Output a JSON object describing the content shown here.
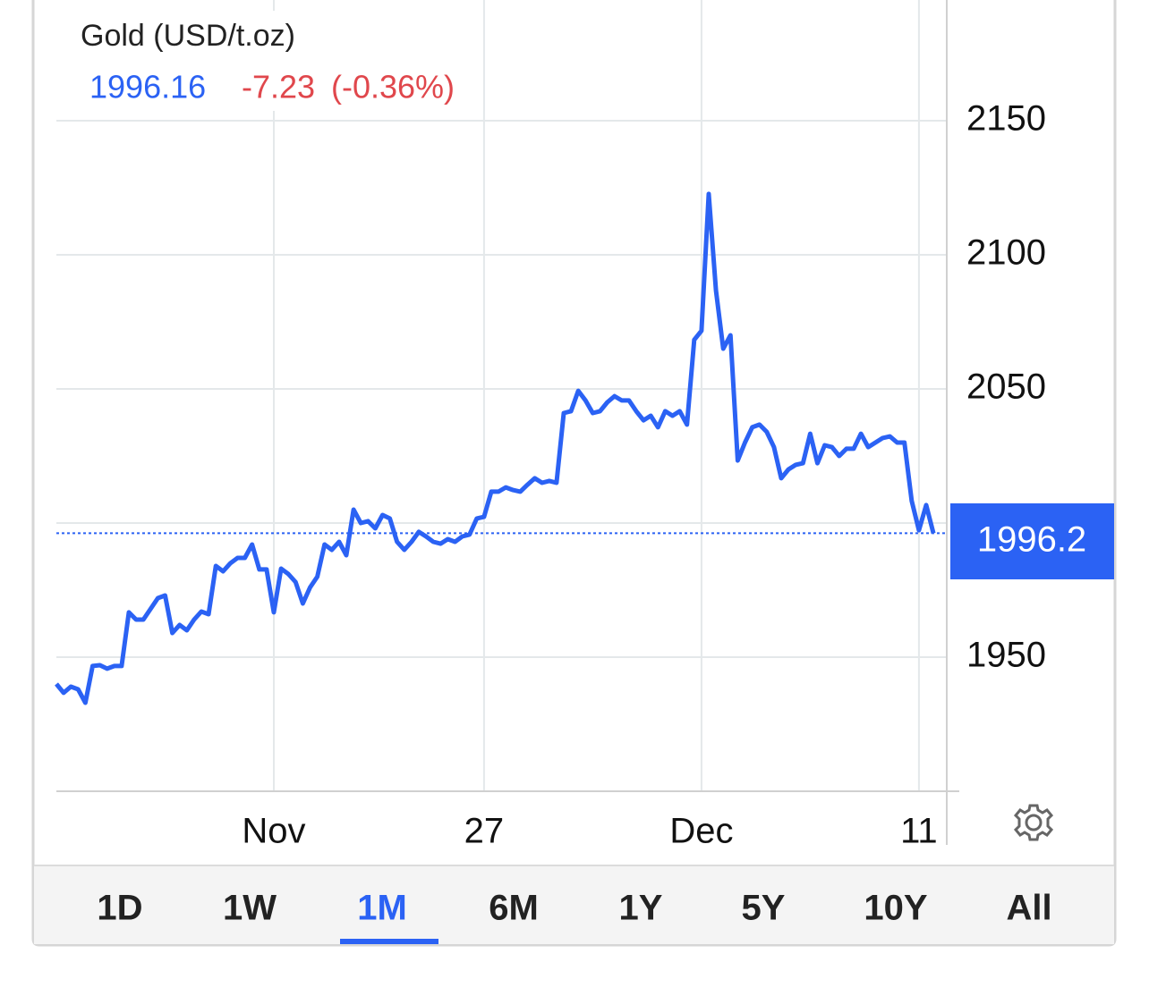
{
  "chart_data": {
    "type": "line",
    "title": "Gold (USD/t.oz)",
    "price": "1996.16",
    "change": "-7.23",
    "change_pct": "(-0.36%)",
    "categories": [
      null,
      null,
      null,
      null,
      null,
      null,
      null,
      null,
      null,
      null,
      null,
      null,
      null,
      null,
      null,
      null,
      null,
      null,
      null,
      null,
      null,
      null,
      null,
      null,
      null,
      null,
      null,
      null,
      null,
      null,
      "Nov",
      null,
      null,
      null,
      null,
      null,
      null,
      null,
      null,
      null,
      null,
      null,
      null,
      null,
      null,
      null,
      null,
      null,
      null,
      null,
      null,
      null,
      null,
      null,
      null,
      null,
      null,
      null,
      null,
      "27",
      null,
      null,
      null,
      null,
      null,
      null,
      null,
      null,
      null,
      null,
      null,
      null,
      null,
      null,
      null,
      null,
      null,
      null,
      null,
      null,
      null,
      null,
      null,
      null,
      null,
      null,
      null,
      null,
      null,
      "Dec",
      null,
      null,
      null,
      null,
      null,
      null,
      null,
      null,
      null,
      null,
      null,
      null,
      null,
      null,
      null,
      null,
      null,
      null,
      null,
      null,
      null,
      null,
      null,
      null,
      null,
      null,
      null,
      null,
      null,
      "11",
      null,
      null
    ],
    "series": [
      {
        "name": "Gold",
        "color": "#2b62f4",
        "values": [
          1940,
          1936.7,
          1939,
          1938,
          1933,
          1946.7,
          1947,
          1945.7,
          1946.7,
          1946.7,
          1966.7,
          1964,
          1964,
          1968,
          1972,
          1973,
          1959,
          1962,
          1960,
          1964,
          1967,
          1966,
          1984,
          1982,
          1985,
          1987,
          1987,
          1992,
          1982.7,
          1982.7,
          1966.7,
          1983,
          1981,
          1978,
          1970,
          1976,
          1980,
          1992,
          1990,
          1993,
          1988,
          2005,
          2000,
          2000.7,
          1998,
          2003,
          2001.7,
          1993,
          1990,
          1993,
          1996.7,
          1995,
          1993,
          1992.3,
          1994,
          1993,
          1995,
          1995.7,
          2001.7,
          2002.3,
          2011.7,
          2011.7,
          2013.3,
          2012.3,
          2011.7,
          2014.3,
          2016.7,
          2015,
          2015.7,
          2015,
          2041,
          2041.7,
          2049.3,
          2045.7,
          2041,
          2041.7,
          2045,
          2047.3,
          2045.7,
          2045.7,
          2041.7,
          2038.3,
          2040,
          2035.7,
          2041.7,
          2040,
          2041.7,
          2036.7,
          2068.3,
          2071.7,
          2122.7,
          2086.7,
          2065,
          2070,
          2023.3,
          2030,
          2035.7,
          2036.7,
          2034,
          2028.3,
          2016.7,
          2020,
          2021.7,
          2022.3,
          2033.3,
          2022.3,
          2029,
          2028.3,
          2025,
          2027.7,
          2027.7,
          2033.3,
          2028.3,
          2030,
          2031.7,
          2032.3,
          2030,
          2030,
          2008.3,
          1997.3,
          2006.7,
          1996.16
        ]
      }
    ],
    "last_price": 1996.2,
    "ylim": [
      1900,
      2195
    ],
    "yticks": [
      1950,
      2000,
      2050,
      2100,
      2150
    ],
    "grid": true,
    "ranges": [
      "1D",
      "1W",
      "1M",
      "6M",
      "1Y",
      "5Y",
      "10Y",
      "All"
    ],
    "selected_range": "1M"
  }
}
